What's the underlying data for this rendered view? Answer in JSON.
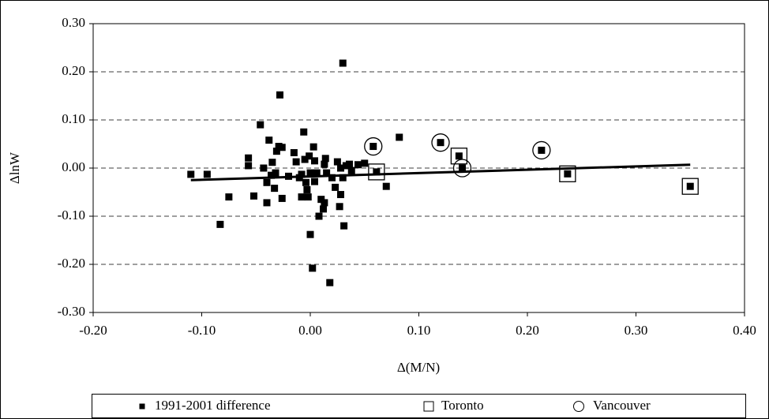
{
  "chart_data": {
    "type": "scatter",
    "xlabel": "Δ(M/N)",
    "ylabel": "ΔlnW",
    "xlim": [
      -0.2,
      0.4
    ],
    "ylim": [
      -0.3,
      0.3
    ],
    "xticks": [
      {
        "value": -0.2,
        "label": "-0.20"
      },
      {
        "value": -0.1,
        "label": "-0.10"
      },
      {
        "value": 0,
        "label": "0.00"
      },
      {
        "value": 0.1,
        "label": "0.10"
      },
      {
        "value": 0.2,
        "label": "0.20"
      },
      {
        "value": 0.3,
        "label": "0.30"
      },
      {
        "value": 0.4,
        "label": "0.40"
      }
    ],
    "yticks": [
      {
        "value": -0.3,
        "label": "-0.30"
      },
      {
        "value": -0.2,
        "label": "-0.20"
      },
      {
        "value": -0.1,
        "label": "-0.10"
      },
      {
        "value": 0,
        "label": "0.00"
      },
      {
        "value": 0.1,
        "label": "0.10"
      },
      {
        "value": 0.2,
        "label": "0.20"
      },
      {
        "value": 0.3,
        "label": "0.30"
      }
    ],
    "grid": true,
    "legend_position": "bottom",
    "series": [
      {
        "name": "1991-2001 difference",
        "marker": "square-filled",
        "color": "#000000",
        "x": [
          -0.11,
          -0.095,
          -0.075,
          -0.083,
          -0.057,
          -0.057,
          -0.052,
          -0.046,
          -0.043,
          -0.04,
          -0.04,
          -0.038,
          -0.036,
          -0.035,
          -0.033,
          -0.032,
          -0.031,
          -0.029,
          -0.028,
          -0.026,
          -0.026,
          -0.02,
          -0.015,
          -0.013,
          -0.01,
          -0.008,
          -0.008,
          -0.006,
          -0.005,
          -0.004,
          -0.003,
          -0.002,
          -0.001,
          0,
          0,
          0.002,
          0.003,
          0.004,
          0.004,
          0.006,
          0.008,
          0.01,
          0.012,
          0.013,
          0.013,
          0.014,
          0.015,
          0.018,
          0.02,
          0.023,
          0.025,
          0.027,
          0.028,
          0.028,
          0.03,
          0.03,
          0.031,
          0.033,
          0.036,
          0.038,
          0.044,
          0.05,
          0.058,
          0.061,
          0.07,
          0.082,
          0.12,
          0.137,
          0.14,
          0.213,
          0.237,
          0.35
        ],
        "y": [
          -0.013,
          -0.013,
          -0.06,
          -0.117,
          0.021,
          0.005,
          -0.058,
          0.09,
          0,
          -0.03,
          -0.072,
          0.058,
          -0.015,
          0.012,
          -0.042,
          -0.01,
          0.035,
          0.045,
          0.152,
          0.043,
          -0.063,
          -0.017,
          0.032,
          0.013,
          -0.02,
          -0.013,
          -0.06,
          0.075,
          0.018,
          -0.03,
          -0.045,
          -0.06,
          0.025,
          -0.138,
          -0.01,
          -0.208,
          0.044,
          0.015,
          -0.028,
          -0.01,
          -0.1,
          -0.065,
          -0.085,
          -0.072,
          0.008,
          0.02,
          -0.01,
          -0.238,
          -0.02,
          -0.04,
          0.013,
          -0.08,
          -0.055,
          0,
          0.218,
          -0.02,
          -0.12,
          0.005,
          0.008,
          -0.005,
          0.007,
          0.01,
          0.045,
          -0.008,
          -0.038,
          0.064,
          0.053,
          0.025,
          0,
          0.037,
          -0.012,
          -0.038
        ]
      },
      {
        "name": "Toronto",
        "marker": "square-open",
        "color": "#000000",
        "x": [
          0.061,
          0.137,
          0.237,
          0.35
        ],
        "y": [
          -0.008,
          0.025,
          -0.012,
          -0.038
        ]
      },
      {
        "name": "Vancouver",
        "marker": "circle-open",
        "color": "#000000",
        "x": [
          0.058,
          0.12,
          0.14,
          0.213
        ],
        "y": [
          0.045,
          0.053,
          0,
          0.037
        ]
      }
    ],
    "trendline": {
      "color": "#000000",
      "x": [
        -0.11,
        0.35
      ],
      "y": [
        -0.025,
        0.007
      ]
    }
  }
}
